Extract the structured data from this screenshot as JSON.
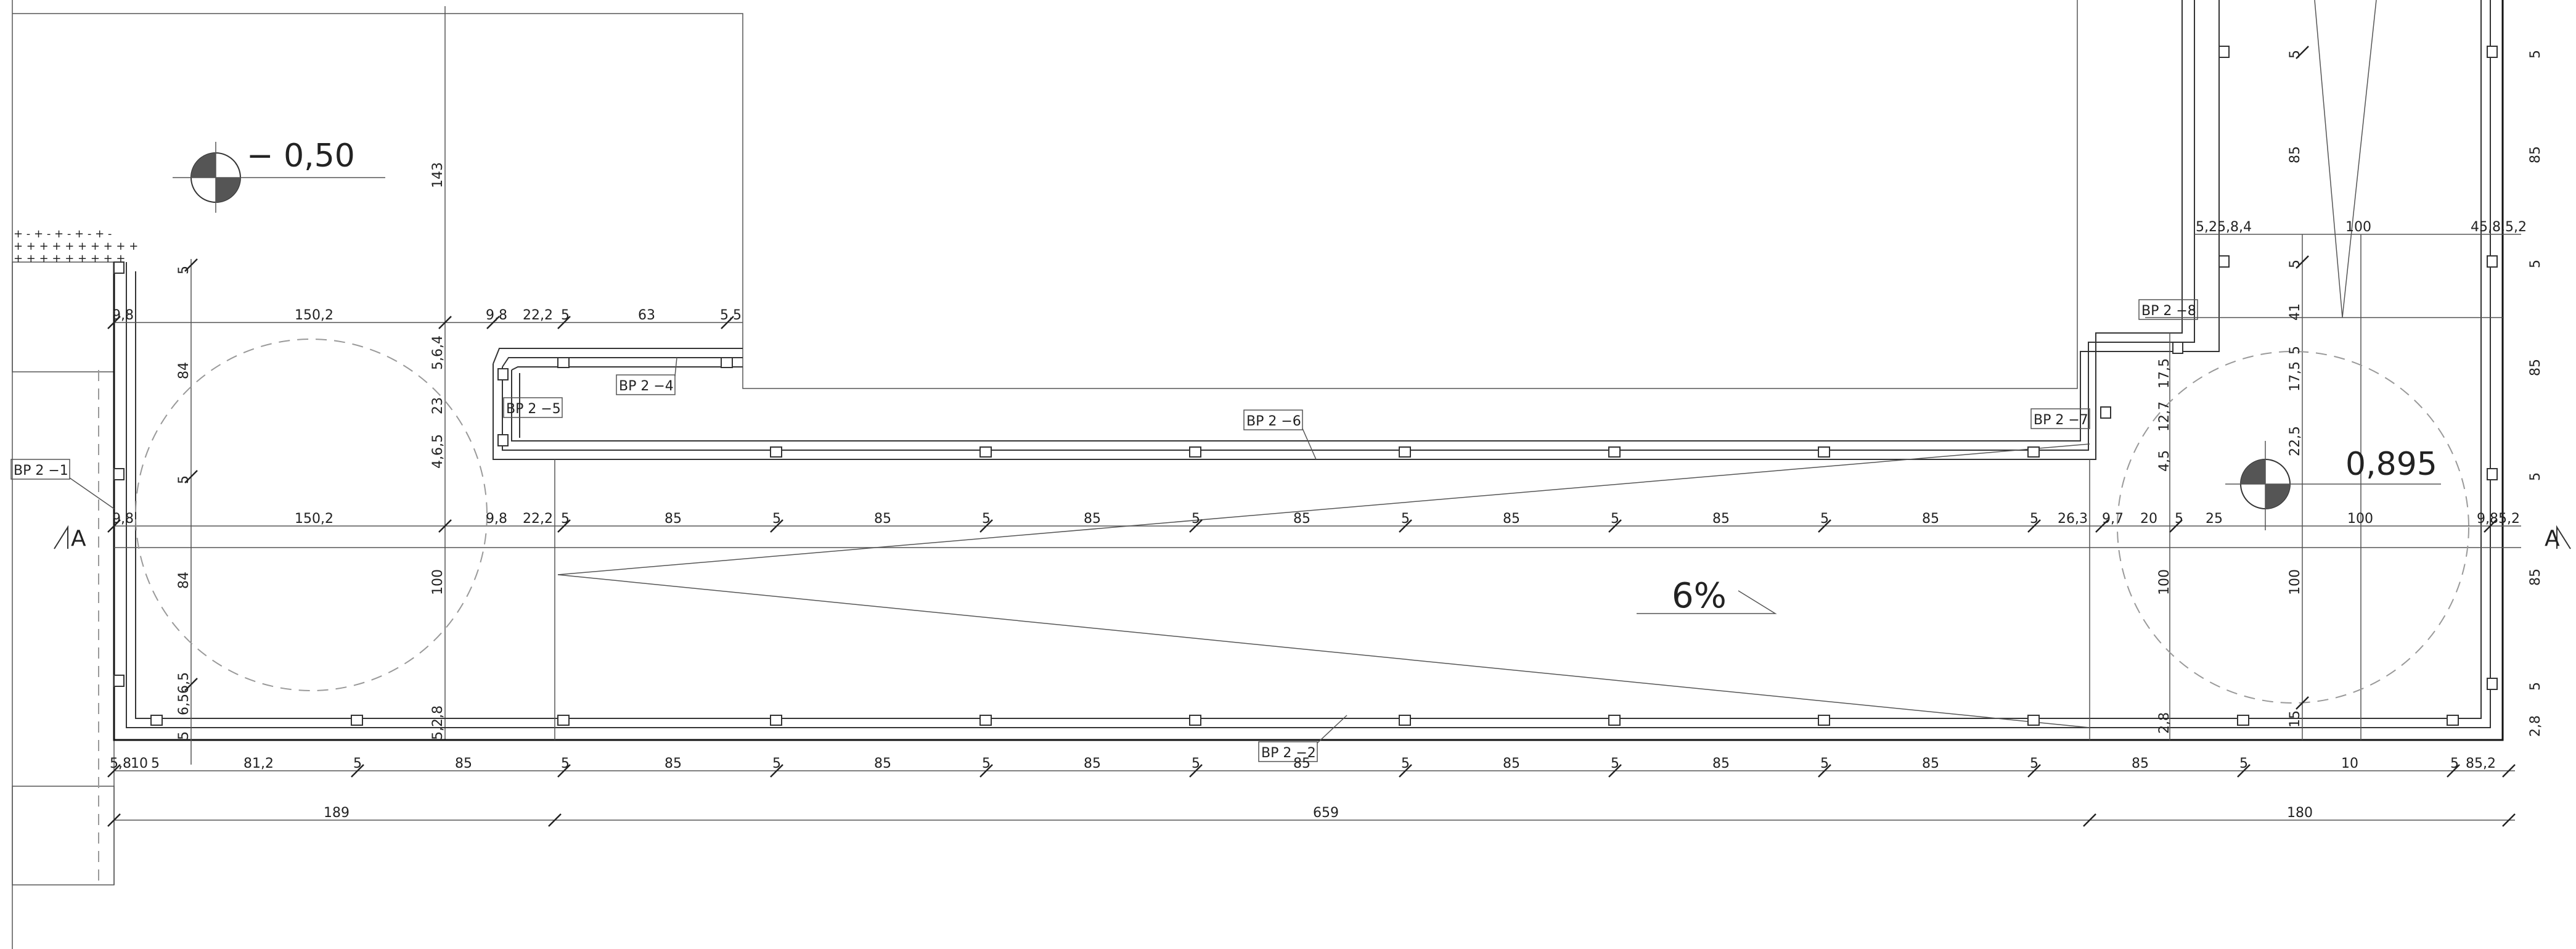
{
  "levels": {
    "left": "− 0,50",
    "right": "0,895"
  },
  "slope": "6%",
  "section_marks": [
    "A",
    "A"
  ],
  "tags": [
    "BP 2 −1",
    "BP 2 −2",
    "BP 2 −4",
    "BP 2 −5",
    "BP 2 −6",
    "BP 2 −7",
    "BP 2 −8"
  ],
  "dims_row_top": [
    "9,8",
    "150,2",
    "9,8",
    "22,2",
    "5",
    "63",
    "5,5"
  ],
  "dims_row_mid": [
    "9,8",
    "150,2",
    "9,8",
    "22,2",
    "5",
    "85",
    "5",
    "85",
    "5",
    "85",
    "5",
    "85",
    "5",
    "85",
    "5",
    "85",
    "5",
    "85",
    "5",
    "26,3",
    "9,7",
    "20",
    "5",
    "25",
    "100",
    "9,85,2"
  ],
  "dims_row_bottom": [
    "5,8",
    "10",
    "5",
    "81,2",
    "5",
    "85",
    "5",
    "85",
    "5",
    "85",
    "5",
    "85",
    "5",
    "85",
    "5",
    "85",
    "5",
    "85",
    "5",
    "85",
    "5",
    "85",
    "5",
    "10",
    "5",
    "85,2"
  ],
  "dims_overall": [
    "189",
    "659",
    "180"
  ],
  "dims_vertical_left": [
    "5",
    "84",
    "5",
    "84",
    "6,5",
    "6,5",
    "5"
  ],
  "dims_vertical_mid": [
    "143",
    "5,6,4",
    "23",
    "4,6,5",
    "100",
    "5,2,8"
  ],
  "dims_vertical_right_a": [
    "5",
    "85",
    "5",
    "41",
    "5",
    "17,5",
    "22,5",
    "100",
    "15"
  ],
  "dims_vertical_right_b": [
    "5",
    "85",
    "5",
    "85",
    "5",
    "85",
    "5",
    "2,8"
  ],
  "dims_vertical_right_c": [
    "17,5",
    "12,7",
    "4,5",
    "100",
    "2,8"
  ],
  "dims_top_right": [
    "5,25,8,4",
    "100",
    "45,8,5,2"
  ]
}
